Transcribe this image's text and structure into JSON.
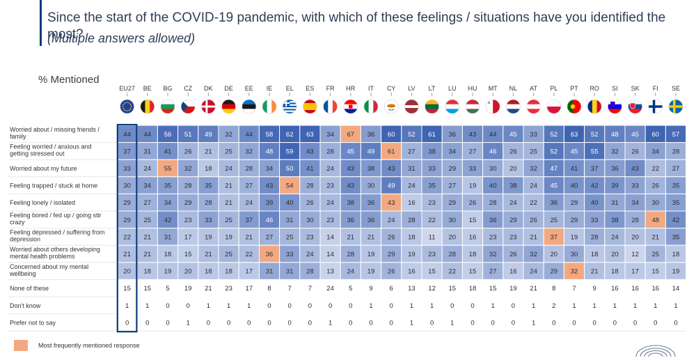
{
  "header": {
    "title": "Since the start of the COVID-19 pandemic, with which of these feelings / situations have you identified the most?",
    "subtitle": "(Multiple answers allowed)"
  },
  "table_label": "% Mentioned",
  "legend": {
    "label": "Most frequently mentioned response",
    "color": "#f2a981"
  },
  "logo_name": "parliament-hemicycle-logo",
  "colors": {
    "highlight": "#f2a981",
    "low": "#eef1fa",
    "high": "#3f64b3",
    "eu_border": "#0b3b78",
    "grid": "#ffffff"
  },
  "chart_data": {
    "type": "table",
    "title": "Since the start of the COVID-19 pandemic, with which of these feelings / situations have you identified the most?",
    "columns": [
      "EU27",
      "BE",
      "BG",
      "CZ",
      "DK",
      "DE",
      "EE",
      "IE",
      "EL",
      "ES",
      "FR",
      "HR",
      "IT",
      "CY",
      "LV",
      "LT",
      "LU",
      "HU",
      "MT",
      "NL",
      "AT",
      "PL",
      "PT",
      "RO",
      "SI",
      "SK",
      "FI",
      "SE"
    ],
    "rows": [
      {
        "label": [
          "Worried about / missing friends /",
          "family"
        ],
        "values": [
          44,
          44,
          56,
          51,
          49,
          32,
          44,
          58,
          62,
          63,
          34,
          67,
          36,
          60,
          52,
          61,
          36,
          43,
          44,
          45,
          33,
          52,
          63,
          52,
          48,
          45,
          60,
          57
        ]
      },
      {
        "label": [
          "Feeling worried / anxious and",
          "getting stressed out"
        ],
        "values": [
          37,
          31,
          41,
          26,
          21,
          25,
          32,
          48,
          59,
          43,
          28,
          45,
          49,
          61,
          27,
          38,
          34,
          27,
          46,
          26,
          25,
          52,
          45,
          55,
          32,
          26,
          34,
          28
        ]
      },
      {
        "label": [
          "Worried about my future"
        ],
        "values": [
          33,
          24,
          55,
          32,
          18,
          24,
          28,
          34,
          50,
          41,
          24,
          43,
          38,
          43,
          31,
          33,
          29,
          33,
          30,
          20,
          32,
          47,
          41,
          37,
          36,
          43,
          22,
          27
        ]
      },
      {
        "label": [
          "Feeling trapped / stuck at home"
        ],
        "values": [
          30,
          34,
          35,
          28,
          35,
          21,
          27,
          43,
          54,
          28,
          23,
          43,
          30,
          49,
          24,
          35,
          27,
          19,
          40,
          38,
          24,
          45,
          40,
          42,
          39,
          33,
          26,
          35
        ]
      },
      {
        "label": [
          "Feeling lonely / isolated"
        ],
        "values": [
          29,
          27,
          34,
          29,
          28,
          21,
          24,
          39,
          40,
          26,
          24,
          38,
          36,
          43,
          16,
          23,
          29,
          26,
          28,
          24,
          22,
          36,
          29,
          40,
          31,
          34,
          30,
          35
        ]
      },
      {
        "label": [
          "Feeling bored / fed up / going stir",
          "crazy"
        ],
        "values": [
          29,
          25,
          42,
          23,
          33,
          25,
          37,
          46,
          31,
          30,
          23,
          36,
          36,
          24,
          28,
          22,
          30,
          15,
          36,
          29,
          26,
          25,
          29,
          33,
          38,
          28,
          48,
          42
        ]
      },
      {
        "label": [
          "Feeling depressed / suffering from",
          "depression"
        ],
        "values": [
          22,
          21,
          31,
          17,
          19,
          19,
          21,
          27,
          25,
          23,
          14,
          21,
          21,
          26,
          18,
          11,
          20,
          16,
          23,
          23,
          21,
          37,
          19,
          28,
          24,
          20,
          21,
          35
        ]
      },
      {
        "label": [
          "Worried about others developing",
          "mental health problems"
        ],
        "values": [
          21,
          21,
          18,
          15,
          21,
          25,
          22,
          36,
          33,
          24,
          14,
          28,
          19,
          29,
          19,
          23,
          28,
          18,
          32,
          26,
          32,
          20,
          30,
          18,
          20,
          12,
          25,
          18
        ]
      },
      {
        "label": [
          "Concerned about my mental",
          "wellbeing"
        ],
        "values": [
          20,
          18,
          19,
          20,
          18,
          18,
          17,
          31,
          31,
          28,
          13,
          24,
          19,
          26,
          16,
          15,
          22,
          15,
          27,
          16,
          24,
          29,
          32,
          21,
          18,
          17,
          15,
          19
        ]
      },
      {
        "label": [
          "None of these"
        ],
        "values": [
          15,
          15,
          5,
          19,
          21,
          23,
          17,
          8,
          7,
          7,
          24,
          5,
          9,
          6,
          13,
          12,
          15,
          18,
          15,
          19,
          21,
          8,
          7,
          9,
          16,
          16,
          16,
          14
        ]
      },
      {
        "label": [
          "Don't know"
        ],
        "values": [
          1,
          1,
          0,
          0,
          1,
          1,
          1,
          0,
          0,
          0,
          0,
          0,
          1,
          0,
          1,
          1,
          0,
          0,
          1,
          0,
          1,
          2,
          1,
          1,
          1,
          1,
          1,
          1
        ]
      },
      {
        "label": [
          "Prefer not to say"
        ],
        "values": [
          0,
          0,
          0,
          1,
          0,
          0,
          0,
          0,
          0,
          0,
          1,
          0,
          0,
          0,
          1,
          0,
          1,
          0,
          0,
          0,
          1,
          0,
          0,
          0,
          0,
          0,
          0,
          0
        ]
      }
    ],
    "highlight": "Most frequently mentioned response (row maximum per column)"
  }
}
